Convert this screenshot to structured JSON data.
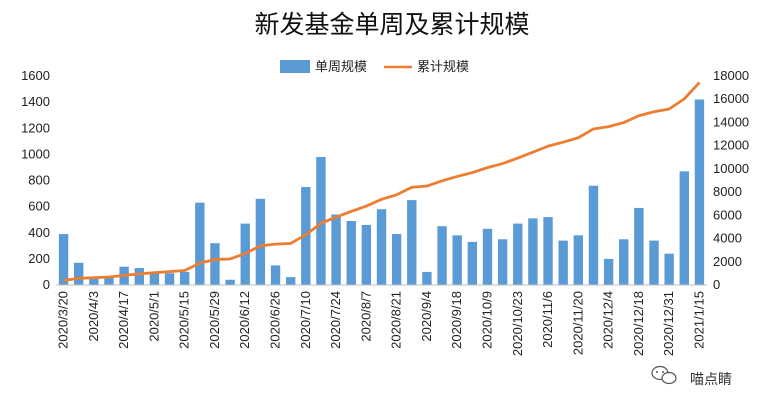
{
  "chart_data": {
    "type": "bar+line",
    "title": "新发基金单周及累计规模",
    "legend": [
      "单周规模",
      "累计规模"
    ],
    "legend_position": "top-center",
    "y_left": {
      "min": 0,
      "max": 1600,
      "step": 200,
      "ticks": [
        "0",
        "200",
        "400",
        "600",
        "800",
        "1000",
        "1200",
        "1400",
        "1600"
      ]
    },
    "y_right": {
      "min": 0,
      "max": 18000,
      "step": 2000,
      "ticks": [
        "0",
        "2000",
        "4000",
        "6000",
        "8000",
        "10000",
        "12000",
        "14000",
        "16000",
        "18000"
      ]
    },
    "x_labels": [
      "2020/3/20",
      "2020/4/3",
      "2020/4/17",
      "2020/5/1",
      "2020/5/15",
      "2020/5/29",
      "2020/6/12",
      "2020/6/26",
      "2020/7/10",
      "2020/7/24",
      "2020/8/7",
      "2020/8/21",
      "2020/9/4",
      "2020/9/18",
      "2020/10/9",
      "2020/10/23",
      "2020/11/6",
      "2020/11/20",
      "2020/12/4",
      "2020/12/18",
      "2020/12/31",
      "2021/1/15"
    ],
    "label_every": 2,
    "series": [
      {
        "name": "单周规模",
        "axis": "left",
        "type": "bar",
        "values": [
          390,
          170,
          60,
          60,
          140,
          130,
          100,
          90,
          100,
          630,
          320,
          40,
          470,
          660,
          150,
          60,
          750,
          980,
          540,
          490,
          460,
          580,
          390,
          650,
          100,
          450,
          380,
          330,
          430,
          350,
          470,
          510,
          520,
          340,
          380,
          760,
          200,
          350,
          590,
          340,
          240,
          870,
          1420
        ]
      },
      {
        "name": "累计规模",
        "axis": "right",
        "type": "line",
        "values": [
          400,
          570,
          630,
          690,
          830,
          960,
          1060,
          1150,
          1250,
          1880,
          2200,
          2240,
          2710,
          3370,
          3520,
          3580,
          4330,
          5310,
          5850,
          6340,
          6800,
          7380,
          7770,
          8420,
          8520,
          8970,
          9350,
          9680,
          10110,
          10460,
          10930,
          11440,
          11960,
          12300,
          12680,
          13440,
          13640,
          13990,
          14580,
          14920,
          15160,
          16030,
          17450
        ]
      }
    ],
    "colors": {
      "bar": "#5b9bd5",
      "line": "#ed7d31",
      "axis": "#bfbfbf"
    }
  },
  "watermark": {
    "text": "喵点睛",
    "icon": "wechat-icon"
  }
}
